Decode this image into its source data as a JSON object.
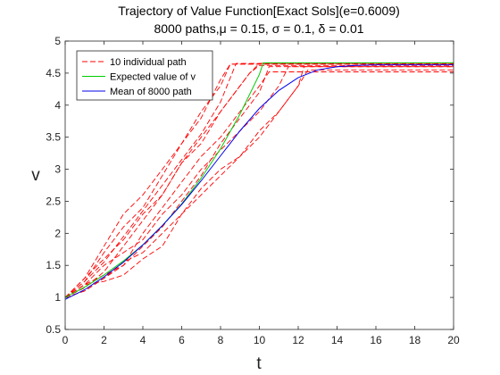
{
  "chart_data": {
    "type": "line",
    "title": "Trajectory of Value Function[Exact Sols](e=0.6009)",
    "subtitle": "8000 paths,μ = 0.15, σ = 0.1, δ = 0.01",
    "xlabel": "t",
    "ylabel": "v",
    "xlim": [
      0,
      20
    ],
    "ylim": [
      0.5,
      5
    ],
    "xticks": [
      0,
      2,
      4,
      6,
      8,
      10,
      12,
      14,
      16,
      18,
      20
    ],
    "yticks": [
      0.5,
      1,
      1.5,
      2,
      2.5,
      3,
      3.5,
      4,
      4.5,
      5
    ],
    "ytick_labels": [
      "0.5",
      "1",
      "1.5",
      "2",
      "2.5",
      "3",
      "3.5",
      "4",
      "4.5",
      "5"
    ],
    "grid": false,
    "legend_position": "top-left",
    "series": [
      {
        "name": "10 individual path",
        "color": "#ff0000",
        "style": "dashed",
        "paths": [
          {
            "x": [
              0,
              1,
              2,
              3,
              4,
              5,
              6,
              7,
              7.5,
              8,
              8.5,
              9,
              10,
              12,
              20
            ],
            "y": [
              1.0,
              1.25,
              1.7,
              2.1,
              2.4,
              2.9,
              3.4,
              3.8,
              4.1,
              4.4,
              4.64,
              4.64,
              4.64,
              4.64,
              4.64
            ]
          },
          {
            "x": [
              0,
              1,
              2,
              3,
              4,
              5,
              6,
              7,
              8,
              9,
              9.5,
              10,
              12,
              20
            ],
            "y": [
              1.0,
              1.3,
              1.6,
              1.9,
              2.3,
              2.6,
              3.1,
              3.4,
              3.9,
              4.3,
              4.5,
              4.65,
              4.65,
              4.65
            ]
          },
          {
            "x": [
              0,
              1,
              2,
              3,
              4,
              5,
              6,
              7,
              8,
              9,
              10,
              10.5,
              12,
              20
            ],
            "y": [
              1.0,
              1.1,
              1.3,
              1.5,
              2.0,
              2.4,
              2.8,
              3.2,
              3.5,
              3.9,
              4.3,
              4.52,
              4.52,
              4.52
            ]
          },
          {
            "x": [
              0,
              1,
              2,
              3,
              4,
              5,
              6,
              7,
              8,
              9,
              10,
              11,
              12,
              12.5,
              14,
              20
            ],
            "y": [
              1.0,
              1.2,
              1.25,
              1.35,
              1.6,
              1.8,
              2.3,
              2.7,
              3.0,
              3.2,
              3.6,
              3.9,
              4.3,
              4.55,
              4.55,
              4.55
            ]
          },
          {
            "x": [
              0,
              1,
              2,
              3,
              4,
              5,
              6,
              7,
              8,
              8.5,
              9,
              10,
              12,
              20
            ],
            "y": [
              1.0,
              1.3,
              1.8,
              2.3,
              2.6,
              3.0,
              3.4,
              3.9,
              4.3,
              4.64,
              4.64,
              4.64,
              4.64,
              4.64
            ]
          },
          {
            "x": [
              0,
              1,
              2,
              3,
              4,
              5,
              6,
              7,
              8,
              9,
              10,
              11,
              11.5,
              12,
              20
            ],
            "y": [
              1.0,
              1.2,
              1.5,
              1.7,
              1.9,
              2.3,
              2.6,
              3.0,
              3.3,
              3.6,
              3.9,
              4.3,
              4.6,
              4.6,
              4.6
            ]
          },
          {
            "x": [
              0,
              1,
              2,
              3,
              4,
              5,
              6,
              7,
              8,
              9,
              9.5,
              10,
              12,
              20
            ],
            "y": [
              1.0,
              1.15,
              1.4,
              1.8,
              2.2,
              2.6,
              3.1,
              3.5,
              3.9,
              4.3,
              4.5,
              4.62,
              4.62,
              4.62
            ]
          },
          {
            "x": [
              0,
              1,
              2,
              3,
              4,
              5,
              6,
              7,
              8,
              9,
              10,
              10.5,
              12,
              20
            ],
            "y": [
              1.0,
              1.2,
              1.35,
              1.5,
              1.8,
              2.1,
              2.5,
              2.9,
              3.4,
              3.8,
              4.2,
              4.6,
              4.6,
              4.6
            ]
          },
          {
            "x": [
              0,
              1,
              2,
              3,
              4,
              5,
              6,
              7,
              8,
              8.8,
              9,
              10,
              12,
              20
            ],
            "y": [
              1.0,
              1.25,
              1.55,
              1.95,
              2.35,
              2.75,
              3.15,
              3.55,
              4.05,
              4.65,
              4.65,
              4.65,
              4.65,
              4.65
            ]
          },
          {
            "x": [
              0,
              1,
              2,
              3,
              4,
              5,
              6,
              7,
              8,
              9,
              10,
              11,
              12,
              12.3,
              14,
              20
            ],
            "y": [
              1.0,
              1.1,
              1.3,
              1.55,
              1.7,
              2.0,
              2.3,
              2.6,
              2.9,
              3.2,
              3.5,
              3.9,
              4.3,
              4.6,
              4.6,
              4.6
            ]
          }
        ]
      },
      {
        "name": "Expected value of v",
        "color": "#00cc00",
        "style": "solid",
        "x": [
          0,
          1,
          2,
          3,
          4,
          5,
          6,
          7,
          8,
          9,
          10,
          10.2,
          12,
          14,
          16,
          18,
          20
        ],
        "y": [
          1.0,
          1.16,
          1.35,
          1.57,
          1.82,
          2.12,
          2.46,
          2.86,
          3.32,
          3.86,
          4.48,
          4.66,
          4.66,
          4.66,
          4.66,
          4.66,
          4.66
        ]
      },
      {
        "name": "Mean of 8000 path",
        "color": "#0000ee",
        "style": "solid",
        "x": [
          0,
          1,
          2,
          3,
          4,
          5,
          6,
          7,
          8,
          9,
          10,
          11,
          12,
          13,
          14,
          15,
          16,
          17,
          18,
          20
        ],
        "y": [
          0.97,
          1.12,
          1.32,
          1.55,
          1.82,
          2.12,
          2.45,
          2.82,
          3.21,
          3.6,
          3.95,
          4.23,
          4.43,
          4.55,
          4.6,
          4.62,
          4.63,
          4.63,
          4.63,
          4.63
        ]
      }
    ]
  }
}
